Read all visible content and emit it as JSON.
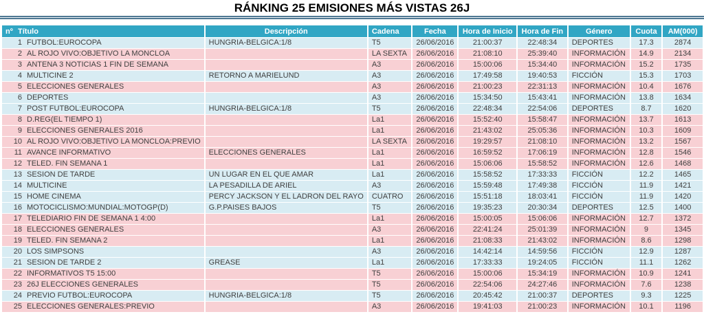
{
  "title": "RÁNKING 25 EMISIONES MÁS VISTAS 26J",
  "colors": {
    "header_bg": "#31a6c4",
    "row_blue": "#d8ecf3",
    "row_pink": "#f8d0d4",
    "title_rule": "#4e7792",
    "header_text": "#ffffff",
    "body_text": "#3f3f3f"
  },
  "chart_data": {
    "type": "table",
    "title": "RÁNKING 25 EMISIONES MÁS VISTAS 26J",
    "columns": [
      "nº",
      "Título",
      "Descripción",
      "Cadena",
      "Fecha",
      "Hora de Inicio",
      "Hora de Fin",
      "Género",
      "Cuota",
      "AM(000)"
    ],
    "rows": [
      [
        1,
        "FUTBOL:EUROCOPA",
        "HUNGRIA-BELGICA:1/8",
        "T5",
        "26/06/2016",
        "21:00:37",
        "22:48:34",
        "DEPORTES",
        17.3,
        2874
      ],
      [
        2,
        "AL ROJO VIVO:OBJETIVO LA MONCLOA",
        "",
        "LA SEXTA",
        "26/06/2016",
        "21:08:10",
        "25:39:40",
        "INFORMACIÓN",
        14.9,
        2134
      ],
      [
        3,
        "ANTENA 3 NOTICIAS 1 FIN DE SEMANA",
        "",
        "A3",
        "26/06/2016",
        "15:00:06",
        "15:34:40",
        "INFORMACIÓN",
        15.2,
        1735
      ],
      [
        4,
        "MULTICINE 2",
        "RETORNO A MARIELUND",
        "A3",
        "26/06/2016",
        "17:49:58",
        "19:40:53",
        "FICCIÓN",
        15.3,
        1703
      ],
      [
        5,
        "ELECCIONES GENERALES",
        "",
        "A3",
        "26/06/2016",
        "21:00:23",
        "22:31:13",
        "INFORMACIÓN",
        10.4,
        1676
      ],
      [
        6,
        "DEPORTES",
        "",
        "A3",
        "26/06/2016",
        "15:34:50",
        "15:43:41",
        "INFORMACIÓN",
        13.8,
        1634
      ],
      [
        7,
        "POST FUTBOL:EUROCOPA",
        "HUNGRIA-BELGICA:1/8",
        "T5",
        "26/06/2016",
        "22:48:34",
        "22:54:06",
        "DEPORTES",
        8.7,
        1620
      ],
      [
        8,
        "D.REG(EL TIEMPO 1)",
        "",
        "La1",
        "26/06/2016",
        "15:52:40",
        "15:58:47",
        "INFORMACIÓN",
        13.7,
        1613
      ],
      [
        9,
        "ELECCIONES GENERALES 2016",
        "",
        "La1",
        "26/06/2016",
        "21:43:02",
        "25:05:36",
        "INFORMACIÓN",
        10.3,
        1609
      ],
      [
        10,
        "AL ROJO VIVO:OBJETIVO LA MONCLOA:PREVIO",
        "",
        "LA SEXTA",
        "26/06/2016",
        "19:29:57",
        "21:08:10",
        "INFORMACIÓN",
        13.2,
        1567
      ],
      [
        11,
        "AVANCE INFORMATIVO",
        "ELECCIONES GENERALES",
        "La1",
        "26/06/2016",
        "16:59:52",
        "17:06:19",
        "INFORMACIÓN",
        12.8,
        1546
      ],
      [
        12,
        "TELED. FIN SEMANA 1",
        "",
        "La1",
        "26/06/2016",
        "15:06:06",
        "15:58:52",
        "INFORMACIÓN",
        12.6,
        1468
      ],
      [
        13,
        "SESION DE TARDE",
        "UN LUGAR EN EL QUE AMAR",
        "La1",
        "26/06/2016",
        "15:58:52",
        "17:33:33",
        "FICCIÓN",
        12.2,
        1465
      ],
      [
        14,
        "MULTICINE",
        "LA PESADILLA DE ARIEL",
        "A3",
        "26/06/2016",
        "15:59:48",
        "17:49:38",
        "FICCIÓN",
        11.9,
        1421
      ],
      [
        15,
        "HOME CINEMA",
        "PERCY JACKSON Y EL LADRON DEL RAYO",
        "CUATRO",
        "26/06/2016",
        "15:51:18",
        "18:03:41",
        "FICCIÓN",
        11.9,
        1420
      ],
      [
        16,
        "MOTOCICLISMO:MUNDIAL:MOTOGP(D)",
        "G.P.PAISES BAJOS",
        "T5",
        "26/06/2016",
        "19:35:23",
        "20:30:34",
        "DEPORTES",
        12.5,
        1400
      ],
      [
        17,
        "TELEDIARIO FIN DE SEMANA 1 4:00",
        "",
        "La1",
        "26/06/2016",
        "15:00:05",
        "15:06:06",
        "INFORMACIÓN",
        12.7,
        1372
      ],
      [
        18,
        "ELECCIONES GENERALES",
        "",
        "A3",
        "26/06/2016",
        "22:41:24",
        "25:01:39",
        "INFORMACIÓN",
        9,
        1345
      ],
      [
        19,
        "TELED. FIN SEMANA 2",
        "",
        "La1",
        "26/06/2016",
        "21:08:33",
        "21:43:02",
        "INFORMACIÓN",
        8.6,
        1298
      ],
      [
        20,
        "LOS SIMPSONS",
        "",
        "A3",
        "26/06/2016",
        "14:42:14",
        "14:59:56",
        "FICCIÓN",
        12.9,
        1287
      ],
      [
        21,
        "SESION DE TARDE 2",
        "GREASE",
        "La1",
        "26/06/2016",
        "17:33:33",
        "19:24:05",
        "FICCIÓN",
        11.1,
        1262
      ],
      [
        22,
        "INFORMATIVOS T5 15:00",
        "",
        "T5",
        "26/06/2016",
        "15:00:06",
        "15:34:19",
        "INFORMACIÓN",
        10.9,
        1241
      ],
      [
        23,
        "26J ELECCIONES GENERALES",
        "",
        "T5",
        "26/06/2016",
        "22:54:06",
        "24:27:46",
        "INFORMACIÓN",
        7.6,
        1238
      ],
      [
        24,
        "PREVIO FUTBOL:EUROCOPA",
        "HUNGRIA-BELGICA:1/8",
        "T5",
        "26/06/2016",
        "20:45:42",
        "21:00:37",
        "DEPORTES",
        9.3,
        1225
      ],
      [
        25,
        "ELECCIONES GENERALES:PREVIO",
        "",
        "A3",
        "26/06/2016",
        "19:41:03",
        "21:00:23",
        "INFORMACIÓN",
        10.1,
        1196
      ]
    ],
    "row_tones": [
      "blue",
      "pink",
      "pink",
      "blue",
      "pink",
      "blue",
      "blue",
      "pink",
      "pink",
      "pink",
      "pink",
      "pink",
      "blue",
      "blue",
      "blue",
      "blue",
      "pink",
      "pink",
      "pink",
      "blue",
      "blue",
      "pink",
      "pink",
      "blue",
      "pink"
    ],
    "layout_hints": {
      "row_color_meaning": "pink = news/election programming, blue = sports/fiction programming"
    }
  }
}
